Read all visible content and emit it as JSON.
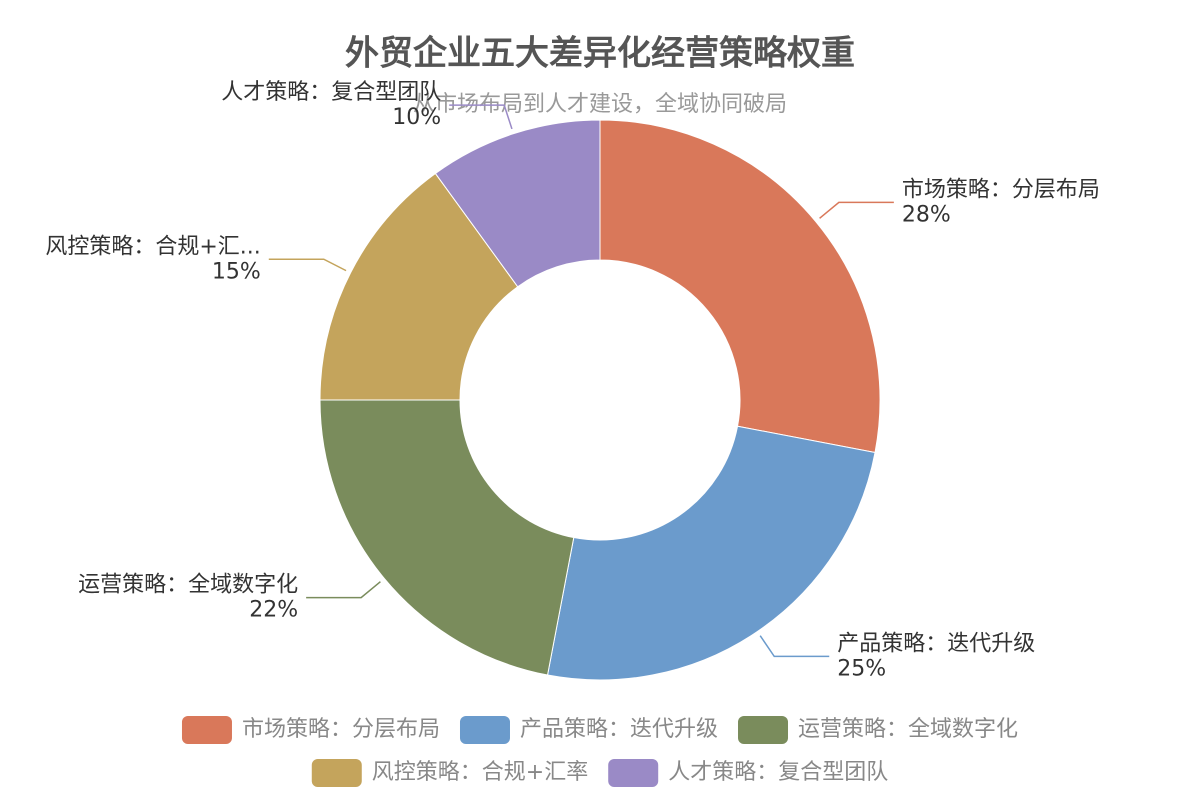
{
  "chart_data": {
    "type": "pie",
    "title": "外贸企业五大差异化经营策略权重",
    "subtitle": "从市场布局到人才建设，全域协同破局",
    "categories": [
      "市场策略：分层布局",
      "产品策略：迭代升级",
      "运营策略：全域数字化",
      "风控策略：合规+汇率",
      "人才策略：复合型团队"
    ],
    "slice_labels": [
      "市场策略：分层布局",
      "产品策略：迭代升级",
      "运营策略：全域数字化",
      "风控策略：合规+汇...",
      "人才策略：复合型团队"
    ],
    "values": [
      28,
      25,
      22,
      15,
      10
    ],
    "value_labels": [
      "28%",
      "25%",
      "22%",
      "15%",
      "10%"
    ],
    "colors": [
      "#d9785a",
      "#6b9bcc",
      "#7a8c5c",
      "#c4a45c",
      "#9a8ac6"
    ],
    "donut": true,
    "legend": "bottom"
  }
}
